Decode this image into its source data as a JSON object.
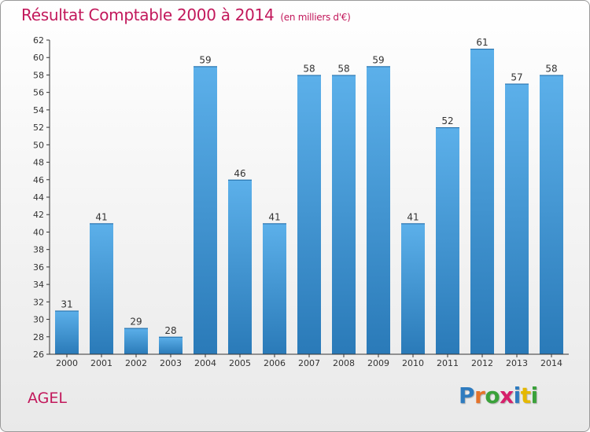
{
  "title": "Résultat Comptable 2000 à 2014",
  "subtitle": "(en milliers d'€)",
  "commune": "AGEL",
  "logo": {
    "letters": [
      "P",
      "r",
      "o",
      "x",
      "i",
      "t",
      "i"
    ],
    "colors": [
      "#2e7bbf",
      "#e5732a",
      "#3aa13a",
      "#d6206b",
      "#2e7bbf",
      "#e5b800",
      "#3aa13a"
    ]
  },
  "colors": {
    "bar_light": "#5cb0ea",
    "bar_dark": "#2a7ab8",
    "title": "#c2185b",
    "axis": "#333333"
  },
  "chart_data": {
    "type": "bar",
    "title": "Résultat Comptable 2000 à 2014",
    "xlabel": "",
    "ylabel": "(en milliers d'€)",
    "categories": [
      "2000",
      "2001",
      "2002",
      "2003",
      "2004",
      "2005",
      "2006",
      "2007",
      "2008",
      "2009",
      "2010",
      "2011",
      "2012",
      "2013",
      "2014"
    ],
    "values": [
      31,
      41,
      29,
      28,
      59,
      46,
      41,
      58,
      58,
      59,
      41,
      52,
      61,
      57,
      58
    ],
    "ylim": [
      26,
      62
    ],
    "yticks": [
      26,
      28,
      30,
      32,
      34,
      36,
      38,
      40,
      42,
      44,
      46,
      48,
      50,
      52,
      54,
      56,
      58,
      60,
      62
    ],
    "grid": false,
    "legend": "none"
  }
}
